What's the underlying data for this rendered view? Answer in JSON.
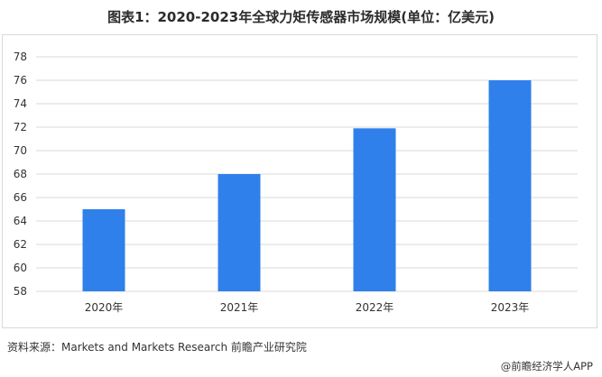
{
  "page": {
    "title": "图表1：2020-2023年全球力矩传感器市场规模(单位：亿美元)",
    "source": "资料来源：Markets and Markets Research 前瞻产业研究院",
    "credit": "@前瞻经济学人APP"
  },
  "colors": {
    "bar": "#2f80ea",
    "grid": "#d9d9d9",
    "axis_text": "#333333"
  },
  "chart_data": {
    "type": "bar",
    "title": "图表1：2020-2023年全球力矩传感器市场规模(单位：亿美元)",
    "xlabel": "",
    "ylabel": "",
    "categories": [
      "2020年",
      "2021年",
      "2022年",
      "2023年"
    ],
    "values": [
      65,
      68,
      71.9,
      76
    ],
    "ylim": [
      58,
      78
    ],
    "yticks": [
      58,
      60,
      62,
      64,
      66,
      68,
      70,
      72,
      74,
      76,
      78
    ],
    "grid": true,
    "legend": "none"
  }
}
